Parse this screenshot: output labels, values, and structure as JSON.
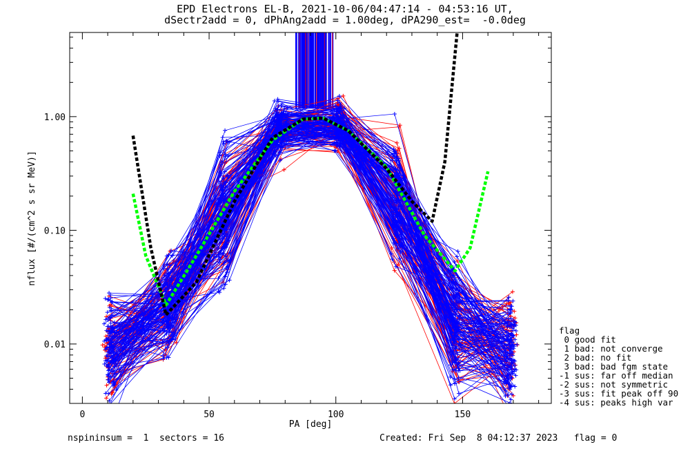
{
  "chart_data": {
    "type": "line",
    "title": "EPD Electrons EL-B, 2021-10-06/04:47:14 - 04:53:16 UT,",
    "subtitle": "dSectr2add = 0, dPhAng2add = 1.00deg, dPA290_est=  -0.0deg",
    "xlabel": "PA [deg]",
    "ylabel": "nflux [#/(cm^2 s sr MeV)]",
    "xlim": [
      -5,
      185
    ],
    "ylim": [
      0.003,
      5.5
    ],
    "yscale": "log",
    "x_ticks": [
      "0",
      "50",
      "100",
      "150"
    ],
    "x_tick_values": [
      0,
      50,
      100,
      150
    ],
    "y_ticks": [
      "0.01",
      "0.10",
      "1.00"
    ],
    "y_tick_values": [
      0.01,
      0.1,
      1.0
    ],
    "pa_sectors": [
      11,
      34,
      56,
      78,
      101,
      124,
      147,
      169
    ],
    "median_profile": [
      0.009,
      0.022,
      0.15,
      0.82,
      0.85,
      0.18,
      0.016,
      0.009
    ],
    "series": [
      {
        "color": "#ff0000",
        "count": 70,
        "sample_values": [
          0.009,
          0.024,
          0.16,
          0.84,
          0.82,
          0.17,
          0.014,
          0.008
        ]
      },
      {
        "color": "#0000ff",
        "count": 130,
        "sample_values": [
          0.008,
          0.021,
          0.14,
          0.8,
          0.86,
          0.19,
          0.018,
          0.01
        ]
      }
    ],
    "fit_curves": [
      {
        "color": "#00ff00",
        "points": [
          [
            20,
            0.21
          ],
          [
            25,
            0.06
          ],
          [
            33,
            0.022
          ],
          [
            45,
            0.06
          ],
          [
            60,
            0.22
          ],
          [
            75,
            0.62
          ],
          [
            87,
            0.95
          ],
          [
            95,
            0.97
          ],
          [
            105,
            0.75
          ],
          [
            120,
            0.36
          ],
          [
            135,
            0.09
          ],
          [
            147,
            0.044
          ],
          [
            153,
            0.07
          ],
          [
            160,
            0.33
          ]
        ]
      },
      {
        "color": "#000000",
        "points": [
          [
            20,
            0.68
          ],
          [
            27,
            0.07
          ],
          [
            33,
            0.018
          ],
          [
            45,
            0.035
          ],
          [
            60,
            0.18
          ],
          [
            75,
            0.65
          ],
          [
            87,
            0.95
          ],
          [
            95,
            0.97
          ],
          [
            105,
            0.75
          ],
          [
            120,
            0.35
          ],
          [
            130,
            0.18
          ],
          [
            138,
            0.12
          ],
          [
            143,
            0.4
          ],
          [
            147,
            3.5
          ],
          [
            148,
            6.0
          ]
        ]
      }
    ],
    "saturated_band_x": [
      84,
      99
    ],
    "grid": false,
    "legend_position": "right"
  },
  "legend": {
    "title": "flag",
    "entries": [
      " 0 good fit",
      " 1 bad: not converge",
      " 2 bad: no fit",
      " 3 bad: bad fgm state",
      "-1 sus: far off median",
      "-2 sus: not symmetric",
      "-3 sus: fit peak off 90",
      "-4 sus: peaks high var"
    ]
  },
  "footer": {
    "left": "nspininsum =  1  sectors = 16",
    "right": "Created: Fri Sep  8 04:12:37 2023   flag = 0"
  }
}
